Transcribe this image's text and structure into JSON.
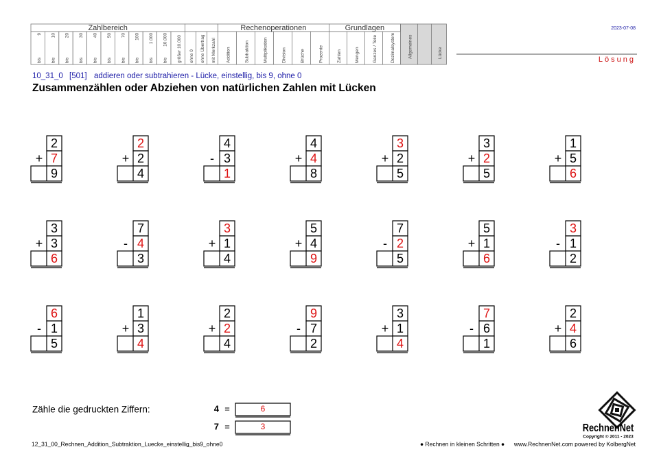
{
  "header": {
    "date": "2023-07-08",
    "solution": "Lösung",
    "zahlbereich": {
      "title": "Zahlbereich",
      "columns": [
        {
          "prefix": "bis",
          "value": "9"
        },
        {
          "prefix": "bis",
          "value": "10"
        },
        {
          "prefix": "bis",
          "value": "20"
        },
        {
          "prefix": "bis",
          "value": "30"
        },
        {
          "prefix": "bis",
          "value": "40"
        },
        {
          "prefix": "bis",
          "value": "50"
        },
        {
          "prefix": "bis",
          "value": "70"
        },
        {
          "prefix": "bis",
          "value": "100"
        },
        {
          "prefix": "bis",
          "value": "1.000"
        },
        {
          "prefix": "bis",
          "value": "10.000"
        },
        {
          "value": "größer 10.000"
        }
      ]
    },
    "extras": [
      "ohne 0",
      "ohne Übertrag",
      "mit Merkzahl"
    ],
    "rechenoperationen": {
      "title": "Rechenoperationen",
      "columns": [
        "Addition",
        "Subtraktion",
        "Multiplikation",
        "Division",
        "Brüche",
        "Prozente"
      ]
    },
    "grundlagen": {
      "title": "Grundlagen",
      "columns": [
        "Zahlen",
        "Mengen",
        "Ganzes / Teile",
        "Dezimalsystem"
      ]
    },
    "allgemeines": "Allgemeines",
    "luecke": "Lücke"
  },
  "subtitle": {
    "code": "10_31_0",
    "id": "[501]",
    "text": "addieren oder subtrahieren - Lücke, einstellig, bis 9, ohne 0"
  },
  "title": "Zusammenzählen oder Abziehen von natürlichen Zahlen mit Lücken",
  "problems": [
    {
      "a": 2,
      "op": "+",
      "b": 7,
      "result": 9,
      "gap": "b"
    },
    {
      "a": 2,
      "op": "+",
      "b": 2,
      "result": 4,
      "gap": "a"
    },
    {
      "a": 4,
      "op": "-",
      "b": 3,
      "result": 1,
      "gap": "result"
    },
    {
      "a": 4,
      "op": "+",
      "b": 4,
      "result": 8,
      "gap": "b"
    },
    {
      "a": 3,
      "op": "+",
      "b": 2,
      "result": 5,
      "gap": "a"
    },
    {
      "a": 3,
      "op": "+",
      "b": 2,
      "result": 5,
      "gap": "b"
    },
    {
      "a": 1,
      "op": "+",
      "b": 5,
      "result": 6,
      "gap": "result"
    },
    {
      "a": 3,
      "op": "+",
      "b": 3,
      "result": 6,
      "gap": "result"
    },
    {
      "a": 7,
      "op": "-",
      "b": 4,
      "result": 3,
      "gap": "b"
    },
    {
      "a": 3,
      "op": "+",
      "b": 1,
      "result": 4,
      "gap": "a"
    },
    {
      "a": 5,
      "op": "+",
      "b": 4,
      "result": 9,
      "gap": "result"
    },
    {
      "a": 7,
      "op": "-",
      "b": 2,
      "result": 5,
      "gap": "b"
    },
    {
      "a": 5,
      "op": "+",
      "b": 1,
      "result": 6,
      "gap": "result"
    },
    {
      "a": 3,
      "op": "-",
      "b": 1,
      "result": 2,
      "gap": "a"
    },
    {
      "a": 6,
      "op": "-",
      "b": 1,
      "result": 5,
      "gap": "a"
    },
    {
      "a": 1,
      "op": "+",
      "b": 3,
      "result": 4,
      "gap": "result"
    },
    {
      "a": 2,
      "op": "+",
      "b": 2,
      "result": 4,
      "gap": "b"
    },
    {
      "a": 9,
      "op": "-",
      "b": 7,
      "result": 2,
      "gap": "a"
    },
    {
      "a": 3,
      "op": "+",
      "b": 1,
      "result": 4,
      "gap": "result"
    },
    {
      "a": 7,
      "op": "-",
      "b": 6,
      "result": 1,
      "gap": "a"
    },
    {
      "a": 2,
      "op": "+",
      "b": 4,
      "result": 6,
      "gap": "b"
    }
  ],
  "count": {
    "label": "Zähle die gedruckten Ziffern:",
    "rows": [
      {
        "digit": 4,
        "eq": "=",
        "answer": 6
      },
      {
        "digit": 7,
        "eq": "=",
        "answer": 3
      }
    ]
  },
  "footer": {
    "filename": "12_31_00_Rechnen_Addition_Subtraktion_Luecke_einstellig_bis9_ohne0",
    "motto": "● Rechnen in kleinen Schritten ●",
    "site": "www.RechnenNet.com powered by KolbergNet",
    "logo": "RechnenNet",
    "copyright": "Copyright © 2011 - 2023"
  }
}
